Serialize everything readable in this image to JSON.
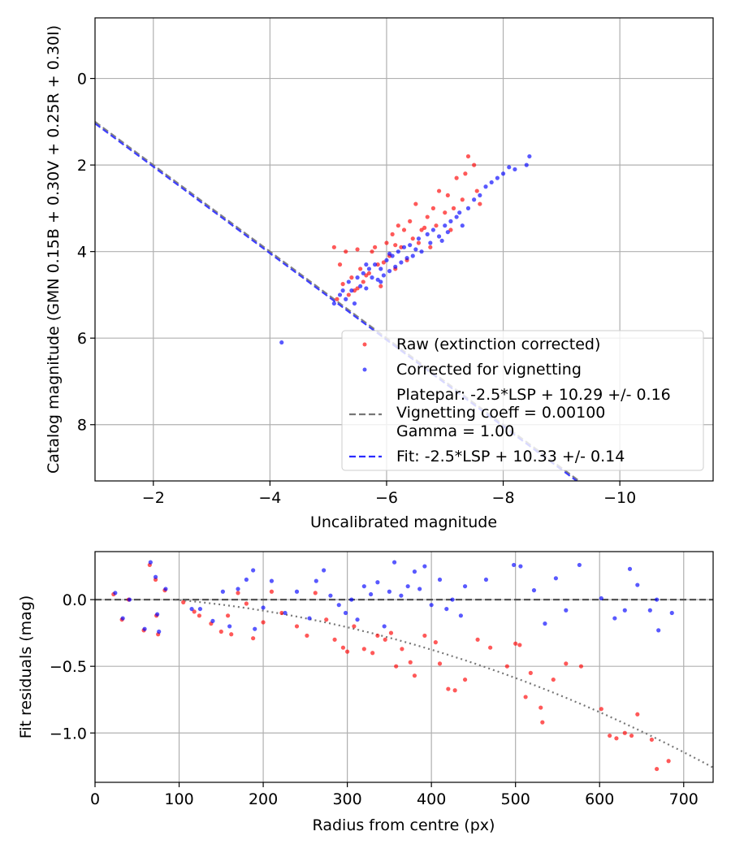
{
  "chart_data": [
    {
      "type": "scatter",
      "xlabel": "Uncalibrated magnitude",
      "ylabel": "Catalog magnitude (GMN 0.15B + 0.30V + 0.25R + 0.30I)",
      "xlim": [
        -1.0,
        -11.6
      ],
      "ylim": [
        9.3,
        -1.4
      ],
      "x_ticks": [
        -2,
        -4,
        -6,
        -8,
        -10
      ],
      "x_tick_labels": [
        "−2",
        "−4",
        "−6",
        "−8",
        "−10"
      ],
      "y_ticks": [
        0,
        2,
        4,
        6,
        8
      ],
      "y_tick_labels": [
        "0",
        "2",
        "4",
        "6",
        "8"
      ],
      "grid": true,
      "legend_position": "bottom-right",
      "legend": {
        "raw_label": "Raw (extinction corrected)",
        "corrected_label": "Corrected for vignetting",
        "platepar_line1": "Platepar: -2.5*LSP + 10.29 +/- 0.16",
        "platepar_line2": "Vignetting coeff = 0.00100",
        "platepar_line3": "Gamma = 1.00",
        "fit_label": "Fit: -2.5*LSP + 10.33 +/- 0.14"
      },
      "lines": [
        {
          "name": "Platepar",
          "style": "dashed",
          "color": "#777777",
          "intercept": 10.29
        },
        {
          "name": "Fit",
          "style": "dashed",
          "color": "#2b2bff",
          "intercept": 10.33
        }
      ],
      "series": [
        {
          "name": "Raw (extinction corrected)",
          "color": "#ff0000",
          "points": [
            [
              -5.1,
              3.9
            ],
            [
              -5.2,
              4.3
            ],
            [
              -5.3,
              4.0
            ],
            [
              -5.4,
              4.6
            ],
            [
              -5.45,
              4.9
            ],
            [
              -5.5,
              3.95
            ],
            [
              -5.55,
              4.4
            ],
            [
              -5.6,
              4.7
            ],
            [
              -5.7,
              4.5
            ],
            [
              -5.75,
              4.0
            ],
            [
              -5.8,
              3.9
            ],
            [
              -5.85,
              4.3
            ],
            [
              -5.9,
              4.8
            ],
            [
              -6.0,
              3.8
            ],
            [
              -6.05,
              4.1
            ],
            [
              -6.1,
              3.6
            ],
            [
              -6.15,
              4.4
            ],
            [
              -6.2,
              3.4
            ],
            [
              -6.25,
              3.9
            ],
            [
              -6.3,
              3.5
            ],
            [
              -6.35,
              4.2
            ],
            [
              -6.4,
              3.3
            ],
            [
              -6.45,
              3.7
            ],
            [
              -6.5,
              2.9
            ],
            [
              -6.55,
              3.8
            ],
            [
              -6.6,
              3.5
            ],
            [
              -6.7,
              3.2
            ],
            [
              -6.75,
              3.9
            ],
            [
              -6.8,
              3.0
            ],
            [
              -6.85,
              3.4
            ],
            [
              -6.9,
              2.6
            ],
            [
              -7.0,
              3.1
            ],
            [
              -7.05,
              2.7
            ],
            [
              -7.1,
              3.5
            ],
            [
              -7.15,
              3.0
            ],
            [
              -7.2,
              2.3
            ],
            [
              -7.3,
              2.8
            ],
            [
              -7.35,
              2.2
            ],
            [
              -7.4,
              1.8
            ],
            [
              -7.5,
              2.0
            ],
            [
              -7.55,
              2.6
            ],
            [
              -7.6,
              2.9
            ],
            [
              -5.15,
              5.1
            ],
            [
              -5.25,
              4.75
            ],
            [
              -5.35,
              5.0
            ],
            [
              -5.5,
              4.85
            ],
            [
              -5.65,
              4.55
            ],
            [
              -5.95,
              4.25
            ],
            [
              -6.15,
              3.85
            ],
            [
              -6.65,
              3.45
            ]
          ]
        },
        {
          "name": "Corrected for vignetting",
          "color": "#0000ff",
          "points": [
            [
              -4.2,
              6.1
            ],
            [
              -5.1,
              5.2
            ],
            [
              -5.2,
              5.0
            ],
            [
              -5.3,
              5.1
            ],
            [
              -5.35,
              4.7
            ],
            [
              -5.4,
              4.9
            ],
            [
              -5.5,
              4.6
            ],
            [
              -5.55,
              4.8
            ],
            [
              -5.6,
              4.5
            ],
            [
              -5.65,
              4.85
            ],
            [
              -5.7,
              4.4
            ],
            [
              -5.75,
              4.6
            ],
            [
              -5.8,
              4.3
            ],
            [
              -5.85,
              4.65
            ],
            [
              -5.9,
              4.4
            ],
            [
              -5.95,
              4.55
            ],
            [
              -6.0,
              4.2
            ],
            [
              -6.05,
              4.45
            ],
            [
              -6.1,
              4.1
            ],
            [
              -6.15,
              4.35
            ],
            [
              -6.2,
              4.0
            ],
            [
              -6.25,
              4.25
            ],
            [
              -6.3,
              3.9
            ],
            [
              -6.35,
              4.15
            ],
            [
              -6.4,
              3.85
            ],
            [
              -6.5,
              3.95
            ],
            [
              -6.55,
              3.7
            ],
            [
              -6.6,
              4.0
            ],
            [
              -6.7,
              3.6
            ],
            [
              -6.75,
              3.8
            ],
            [
              -6.8,
              3.5
            ],
            [
              -6.9,
              3.65
            ],
            [
              -7.0,
              3.4
            ],
            [
              -7.05,
              3.55
            ],
            [
              -7.1,
              3.3
            ],
            [
              -7.2,
              3.2
            ],
            [
              -7.3,
              3.4
            ],
            [
              -7.4,
              3.0
            ],
            [
              -7.5,
              2.8
            ],
            [
              -7.6,
              2.7
            ],
            [
              -7.7,
              2.5
            ],
            [
              -7.8,
              2.4
            ],
            [
              -7.9,
              2.3
            ],
            [
              -8.0,
              2.2
            ],
            [
              -8.1,
              2.05
            ],
            [
              -8.2,
              2.1
            ],
            [
              -8.4,
              2.0
            ],
            [
              -8.45,
              1.8
            ],
            [
              -5.45,
              5.2
            ],
            [
              -5.25,
              4.9
            ],
            [
              -5.9,
              4.7
            ],
            [
              -6.45,
              4.1
            ],
            [
              -6.95,
              3.75
            ],
            [
              -7.25,
              3.1
            ],
            [
              -6.05,
              4.05
            ],
            [
              -5.65,
              4.3
            ]
          ]
        }
      ]
    },
    {
      "type": "scatter",
      "xlabel": "Radius from centre (px)",
      "ylabel": "Fit residuals (mag)",
      "xlim": [
        0,
        735
      ],
      "ylim": [
        -1.37,
        0.36
      ],
      "x_ticks": [
        0,
        100,
        200,
        300,
        400,
        500,
        600,
        700
      ],
      "x_tick_labels": [
        "0",
        "100",
        "200",
        "300",
        "400",
        "500",
        "600",
        "700"
      ],
      "y_ticks": [
        0.0,
        -0.5,
        -1.0
      ],
      "y_tick_labels": [
        "0.0",
        "−0.5",
        "−1.0"
      ],
      "grid": true,
      "lines": [
        {
          "name": "zero",
          "style": "dashed",
          "color": "#555555",
          "value": 0.0
        },
        {
          "name": "vignetting model",
          "style": "dotted",
          "color": "#777777"
        }
      ],
      "series": [
        {
          "name": "Raw residuals",
          "color": "#ff0000",
          "points": [
            [
              22,
              0.04
            ],
            [
              32,
              -0.15
            ],
            [
              40,
              0.0
            ],
            [
              58,
              -0.23
            ],
            [
              65,
              0.26
            ],
            [
              72,
              0.15
            ],
            [
              73,
              -0.12
            ],
            [
              75,
              -0.26
            ],
            [
              83,
              0.07
            ],
            [
              105,
              -0.02
            ],
            [
              118,
              -0.09
            ],
            [
              124,
              -0.12
            ],
            [
              138,
              -0.18
            ],
            [
              150,
              -0.24
            ],
            [
              158,
              -0.12
            ],
            [
              162,
              -0.26
            ],
            [
              170,
              0.05
            ],
            [
              180,
              -0.03
            ],
            [
              188,
              -0.29
            ],
            [
              200,
              -0.17
            ],
            [
              210,
              0.06
            ],
            [
              222,
              -0.1
            ],
            [
              240,
              -0.2
            ],
            [
              252,
              -0.27
            ],
            [
              262,
              0.05
            ],
            [
              275,
              -0.15
            ],
            [
              285,
              -0.3
            ],
            [
              295,
              -0.36
            ],
            [
              300,
              -0.39
            ],
            [
              308,
              -0.2
            ],
            [
              320,
              -0.37
            ],
            [
              330,
              -0.4
            ],
            [
              336,
              -0.27
            ],
            [
              345,
              -0.3
            ],
            [
              352,
              -0.25
            ],
            [
              358,
              -0.5
            ],
            [
              365,
              -0.37
            ],
            [
              375,
              -0.47
            ],
            [
              380,
              -0.57
            ],
            [
              392,
              -0.27
            ],
            [
              405,
              -0.32
            ],
            [
              410,
              -0.48
            ],
            [
              420,
              -0.67
            ],
            [
              428,
              -0.68
            ],
            [
              440,
              -0.6
            ],
            [
              455,
              -0.3
            ],
            [
              470,
              -0.36
            ],
            [
              490,
              -0.5
            ],
            [
              500,
              -0.33
            ],
            [
              505,
              -0.34
            ],
            [
              512,
              -0.73
            ],
            [
              518,
              -0.55
            ],
            [
              530,
              -0.81
            ],
            [
              532,
              -0.92
            ],
            [
              545,
              -0.6
            ],
            [
              560,
              -0.48
            ],
            [
              578,
              -0.5
            ],
            [
              602,
              -0.82
            ],
            [
              612,
              -1.02
            ],
            [
              620,
              -1.04
            ],
            [
              630,
              -1.0
            ],
            [
              638,
              -1.02
            ],
            [
              645,
              -0.86
            ],
            [
              662,
              -1.05
            ],
            [
              668,
              -1.27
            ],
            [
              682,
              -1.21
            ]
          ]
        },
        {
          "name": "Corrected residuals",
          "color": "#0000ff",
          "points": [
            [
              24,
              0.05
            ],
            [
              33,
              -0.14
            ],
            [
              41,
              0.0
            ],
            [
              59,
              -0.22
            ],
            [
              66,
              0.28
            ],
            [
              72,
              0.17
            ],
            [
              74,
              -0.11
            ],
            [
              76,
              -0.24
            ],
            [
              84,
              0.08
            ],
            [
              115,
              -0.07
            ],
            [
              125,
              -0.07
            ],
            [
              140,
              -0.16
            ],
            [
              152,
              0.06
            ],
            [
              160,
              -0.2
            ],
            [
              170,
              0.08
            ],
            [
              180,
              0.15
            ],
            [
              188,
              0.22
            ],
            [
              190,
              -0.22
            ],
            [
              200,
              -0.06
            ],
            [
              210,
              0.14
            ],
            [
              226,
              -0.1
            ],
            [
              240,
              0.06
            ],
            [
              255,
              -0.14
            ],
            [
              263,
              0.14
            ],
            [
              272,
              0.22
            ],
            [
              280,
              0.03
            ],
            [
              290,
              -0.04
            ],
            [
              298,
              -0.1
            ],
            [
              305,
              0.0
            ],
            [
              312,
              -0.15
            ],
            [
              320,
              0.1
            ],
            [
              328,
              0.04
            ],
            [
              336,
              0.13
            ],
            [
              344,
              -0.2
            ],
            [
              350,
              0.06
            ],
            [
              356,
              0.28
            ],
            [
              364,
              0.03
            ],
            [
              372,
              0.1
            ],
            [
              380,
              0.21
            ],
            [
              386,
              0.08
            ],
            [
              392,
              0.25
            ],
            [
              400,
              -0.04
            ],
            [
              410,
              0.15
            ],
            [
              418,
              -0.07
            ],
            [
              425,
              0.0
            ],
            [
              435,
              -0.12
            ],
            [
              440,
              0.1
            ],
            [
              465,
              0.15
            ],
            [
              498,
              0.26
            ],
            [
              506,
              0.25
            ],
            [
              522,
              0.07
            ],
            [
              535,
              -0.18
            ],
            [
              548,
              0.16
            ],
            [
              560,
              -0.08
            ],
            [
              576,
              0.26
            ],
            [
              602,
              0.01
            ],
            [
              618,
              -0.14
            ],
            [
              630,
              -0.08
            ],
            [
              636,
              0.23
            ],
            [
              645,
              0.11
            ],
            [
              660,
              -0.08
            ],
            [
              668,
              0.0
            ],
            [
              670,
              -0.23
            ],
            [
              686,
              -0.1
            ]
          ]
        }
      ]
    }
  ]
}
